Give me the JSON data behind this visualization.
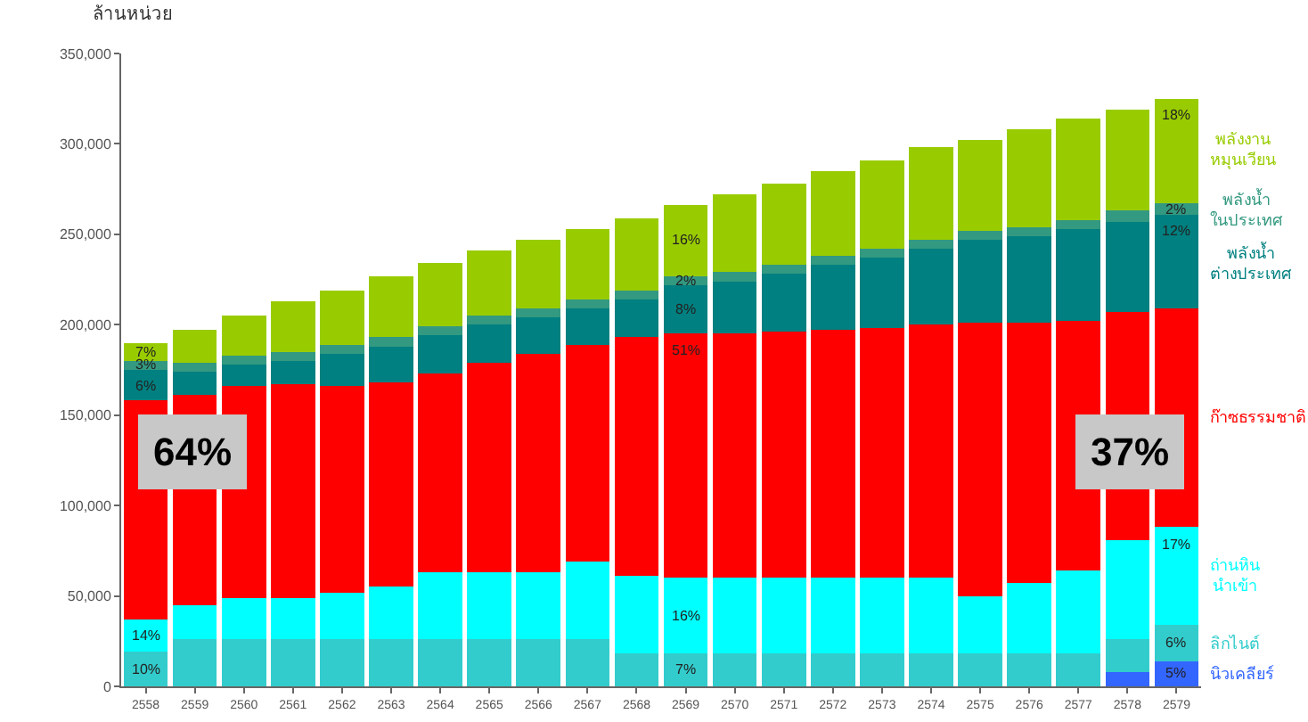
{
  "chart_data": {
    "type": "bar",
    "stacked": true,
    "ylabel": "ล้านหน่วย",
    "categories": [
      "2558",
      "2559",
      "2560",
      "2561",
      "2562",
      "2563",
      "2564",
      "2565",
      "2566",
      "2567",
      "2568",
      "2569",
      "2570",
      "2571",
      "2572",
      "2573",
      "2574",
      "2575",
      "2576",
      "2577",
      "2578",
      "2579"
    ],
    "series": [
      {
        "name": "นิวเคลียร์",
        "color": "#3366ff",
        "values": [
          0,
          0,
          0,
          0,
          0,
          0,
          0,
          0,
          0,
          0,
          0,
          0,
          0,
          0,
          0,
          0,
          0,
          0,
          0,
          0,
          8000,
          14000
        ]
      },
      {
        "name": "ลิกไนต์",
        "color": "#33cccc",
        "values": [
          19000,
          26000,
          26000,
          26000,
          26000,
          26000,
          26000,
          26000,
          26000,
          26000,
          18000,
          18000,
          18000,
          18000,
          18000,
          18000,
          18000,
          18000,
          18000,
          18000,
          18000,
          20000
        ]
      },
      {
        "name": "ถ่านหิน นำเข้า",
        "color": "#00ffff",
        "values": [
          18000,
          19000,
          23000,
          23000,
          26000,
          29000,
          37000,
          37000,
          37000,
          43000,
          43000,
          42000,
          42000,
          42000,
          42000,
          42000,
          42000,
          32000,
          39000,
          46000,
          55000,
          54000
        ]
      },
      {
        "name": "ก๊าซธรรมชาติ",
        "color": "#ff0000",
        "values": [
          121000,
          116000,
          117000,
          118000,
          114000,
          113000,
          110000,
          116000,
          121000,
          120000,
          132000,
          135000,
          135000,
          136000,
          137000,
          138000,
          140000,
          151000,
          144000,
          138000,
          126000,
          121000
        ]
      },
      {
        "name": "พลังน้ำ ต่างประเทศ",
        "color": "#008080",
        "values": [
          17000,
          13000,
          12000,
          13000,
          18000,
          20000,
          21000,
          21000,
          20000,
          20000,
          21000,
          27000,
          29000,
          32000,
          36000,
          39000,
          42000,
          46000,
          48000,
          51000,
          50000,
          52000
        ]
      },
      {
        "name": "พลังน้ำ ในประเทศ",
        "color": "#339980",
        "values": [
          5000,
          5000,
          5000,
          5000,
          5000,
          5000,
          5000,
          5000,
          5000,
          5000,
          5000,
          5000,
          5000,
          5000,
          5000,
          5000,
          5000,
          5000,
          5000,
          5000,
          6000,
          6000
        ]
      },
      {
        "name": "พลังงาน หมุนเวียน",
        "color": "#99cc00",
        "values": [
          10000,
          18000,
          22000,
          28000,
          30000,
          34000,
          35000,
          36000,
          38000,
          39000,
          40000,
          39000,
          43000,
          45000,
          47000,
          49000,
          51000,
          50000,
          54000,
          56000,
          56000,
          58000
        ]
      }
    ],
    "ylim": [
      0,
      350000
    ],
    "yticks": [
      0,
      {
        "value": 50000,
        "label": "50,000"
      },
      {
        "value": 100000,
        "label": "100,000"
      },
      {
        "value": 150000,
        "label": "150,000"
      },
      {
        "value": 200000,
        "label": "200,000"
      },
      {
        "value": 250000,
        "label": "250,000"
      },
      {
        "value": 300000,
        "label": "300,000"
      },
      {
        "value": 350000,
        "label": "350,000"
      }
    ],
    "grid": false,
    "annotations": [
      "64%",
      "37%",
      {
        "text": "7%",
        "x": "2558",
        "y": 190000
      },
      {
        "text": "3%",
        "x": "2558",
        "y": 180000
      },
      {
        "text": "6%",
        "x": "2558",
        "y": 175000
      },
      {
        "text": "14%",
        "x": "2558",
        "y": 37000
      },
      {
        "text": "10%",
        "x": "2558",
        "y": 19000
      },
      {
        "text": "16%",
        "x": "2569",
        "y": 266000
      },
      {
        "text": "2%",
        "x": "2569",
        "y": 227000
      },
      {
        "text": "8%",
        "x": "2569",
        "y": 222000
      },
      {
        "text": "51%",
        "x": "2569",
        "y": 195000
      },
      {
        "text": "16%",
        "x": "2569",
        "y": 60000
      },
      {
        "text": "7%",
        "x": "2569",
        "y": 18000
      },
      {
        "text": "18%",
        "x": "2579",
        "y": 325000
      },
      {
        "text": "2%",
        "x": "2579",
        "y": 267000
      },
      {
        "text": "12%",
        "x": "2579",
        "y": 261000
      },
      {
        "text": "17%",
        "x": "2579",
        "y": 88000
      },
      {
        "text": "6%",
        "x": "2579",
        "y": 34000
      },
      {
        "text": "5%",
        "x": "2579",
        "y": 14000
      }
    ]
  }
}
